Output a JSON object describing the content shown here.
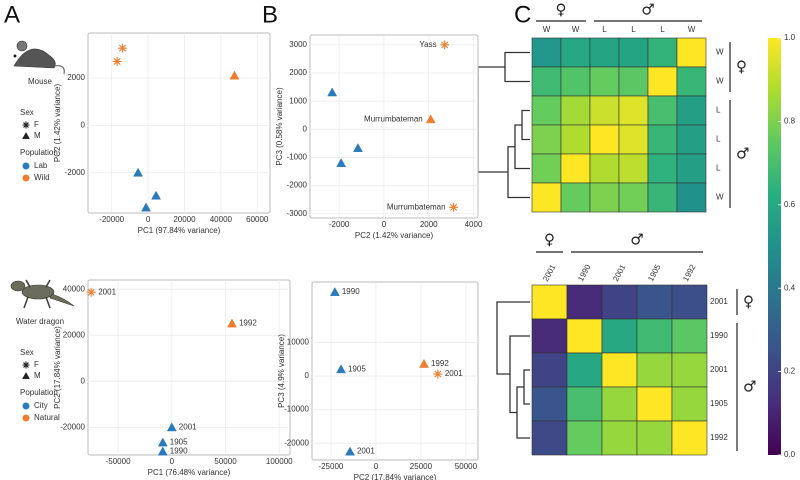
{
  "panels": [
    "A",
    "B",
    "C"
  ],
  "legends": [
    {
      "species": "Mouse",
      "sex_title": "Sex",
      "sex": [
        {
          "label": "F",
          "marker": "asterisk"
        },
        {
          "label": "M",
          "marker": "triangle"
        }
      ],
      "population_title": "Population"
    },
    {
      "species": "Water dragon",
      "sex_title": "Sex",
      "sex": [
        {
          "label": "F",
          "marker": "asterisk"
        },
        {
          "label": "M",
          "marker": "triangle"
        }
      ],
      "population_title": "Population"
    }
  ],
  "colorbar": {
    "lim": [
      0,
      1
    ],
    "ticks": [
      {
        "value": 0,
        "label": "0.0"
      },
      {
        "value": 0.2,
        "label": "0.2"
      },
      {
        "value": 0.4,
        "label": "0.4"
      },
      {
        "value": 0.6,
        "label": "0.6"
      },
      {
        "value": 0.8,
        "label": "0.8"
      },
      {
        "value": 1,
        "label": "1.0"
      }
    ]
  },
  "chart_data": [
    {
      "type": "scatter",
      "x_label": "PC1 (97.84% variance)",
      "y_label": "PC2 (1.42% variance)",
      "xlim": [
        -33000,
        67000
      ],
      "xticks": [
        -20000,
        0,
        20000,
        40000,
        60000
      ],
      "ylim": [
        -3700,
        3900
      ],
      "yticks": [
        -2000,
        0,
        2000
      ],
      "grid": true,
      "label_position": "right",
      "series": [
        {
          "name": "Lab",
          "color": "#2b7bba",
          "x": [
            -5500,
            4400,
            -1100
          ],
          "y": [
            -2000,
            -2970,
            -3470
          ],
          "markers": [
            "triangle",
            "triangle",
            "triangle"
          ]
        },
        {
          "name": "Wild",
          "color": "#ee7d2f",
          "x": [
            -17000,
            -14000,
            47500
          ],
          "y": [
            2700,
            3260,
            2100
          ],
          "markers": [
            "asterisk",
            "asterisk",
            "triangle"
          ]
        }
      ]
    },
    {
      "type": "scatter",
      "x_label": "PC2 (1.42% variance)",
      "y_label": "PC3 (0.58% variance)",
      "xlim": [
        -3300,
        4200
      ],
      "xticks": [
        -2000,
        0,
        2000,
        4000
      ],
      "ylim": [
        -3150,
        3350
      ],
      "yticks": [
        -3000,
        -2000,
        -1000,
        0,
        1000,
        2000,
        3000
      ],
      "grid": true,
      "label_position": "left",
      "series": [
        {
          "name": "Lab",
          "color": "#2b7bba",
          "x": [
            -2310,
            -1160,
            -1910
          ],
          "y": [
            1310,
            -670,
            -1200
          ],
          "markers": [
            "triangle",
            "triangle",
            "triangle"
          ]
        },
        {
          "name": "Wild",
          "color": "#ee7d2f",
          "x": [
            2710,
            2090,
            3110
          ],
          "y": [
            3000,
            355,
            -2770
          ],
          "markers": [
            "asterisk",
            "triangle",
            "asterisk"
          ],
          "labels": [
            "Yass",
            "Murrumbateman",
            "Murrumbateman"
          ]
        }
      ]
    },
    {
      "type": "scatter",
      "x_label": "PC1 (76.48% variance)",
      "y_label": "PC2 (17.84% variance)",
      "xlim": [
        -78000,
        110000
      ],
      "xticks": [
        -50000,
        0,
        50000,
        100000
      ],
      "ylim": [
        -32000,
        44000
      ],
      "yticks": [
        -20000,
        0,
        20000,
        40000
      ],
      "grid": true,
      "label_position": "right",
      "series": [
        {
          "name": "City",
          "color": "#2b7bba",
          "x": [
            0,
            -8400,
            -8400
          ],
          "y": [
            -20000,
            -26600,
            -30500
          ],
          "markers": [
            "triangle",
            "triangle",
            "triangle"
          ],
          "labels": [
            "2001",
            "1905",
            "1990"
          ]
        },
        {
          "name": "Natural",
          "color": "#ee7d2f",
          "x": [
            -75000,
            56000
          ],
          "y": [
            38700,
            25100
          ],
          "markers": [
            "asterisk",
            "triangle"
          ],
          "labels": [
            "2001",
            "1992"
          ]
        }
      ]
    },
    {
      "type": "scatter",
      "x_label": "PC2 (17.84% variance)",
      "y_label": "PC3 (4.9% variance)",
      "xlim": [
        -35500,
        56700
      ],
      "xticks": [
        -25000,
        0,
        25000,
        50000
      ],
      "ylim": [
        -25000,
        28000
      ],
      "yticks": [
        -20000,
        -10000,
        0,
        10000
      ],
      "grid": true,
      "label_position": "right",
      "series": [
        {
          "name": "City",
          "color": "#2b7bba",
          "x": [
            -22800,
            -19400,
            -14400
          ],
          "y": [
            25000,
            2000,
            -22500
          ],
          "markers": [
            "triangle",
            "triangle",
            "triangle"
          ],
          "labels": [
            "1990",
            "1905",
            "2001"
          ]
        },
        {
          "name": "Natural",
          "color": "#ee7d2f",
          "x": [
            26700,
            34400
          ],
          "y": [
            3600,
            600
          ],
          "markers": [
            "triangle",
            "asterisk"
          ],
          "labels": [
            "1992",
            "2001"
          ]
        }
      ]
    },
    {
      "type": "heatmap",
      "colormap": "viridis",
      "clim": [
        0,
        1
      ],
      "x_groups": [
        {
          "label": "♀",
          "count": 2
        },
        {
          "label": "♂",
          "count": 4
        }
      ],
      "y_groups": [
        {
          "label": "♀",
          "count": 2
        },
        {
          "label": "♂",
          "count": 4
        }
      ],
      "x_labels": [
        "W",
        "W",
        "L",
        "L",
        "L",
        "W"
      ],
      "y_labels": [
        "W",
        "W",
        "L",
        "L",
        "L",
        "W"
      ],
      "values": [
        [
          0.52,
          0.6,
          0.58,
          0.58,
          0.65,
          1.0
        ],
        [
          0.68,
          0.72,
          0.76,
          0.74,
          1.0,
          0.66
        ],
        [
          0.76,
          0.86,
          0.92,
          0.95,
          0.7,
          0.56
        ],
        [
          0.8,
          0.88,
          1.0,
          0.95,
          0.66,
          0.56
        ],
        [
          0.78,
          1.0,
          0.88,
          0.9,
          0.64,
          0.56
        ],
        [
          1.0,
          0.76,
          0.8,
          0.78,
          0.66,
          0.5
        ]
      ]
    },
    {
      "type": "heatmap",
      "colormap": "viridis",
      "clim": [
        0,
        1
      ],
      "x_groups": [
        {
          "label": "♀",
          "count": 1
        },
        {
          "label": "♂",
          "count": 4
        }
      ],
      "y_groups": [
        {
          "label": "♀",
          "count": 1
        },
        {
          "label": "♂",
          "count": 4
        }
      ],
      "x_labels": [
        "2001",
        "1990",
        "2001",
        "1905",
        "1992"
      ],
      "y_labels": [
        "2001",
        "1990",
        "2001",
        "1905",
        "1992"
      ],
      "values": [
        [
          1.0,
          0.12,
          0.2,
          0.26,
          0.24
        ],
        [
          0.12,
          1.0,
          0.6,
          0.68,
          0.74
        ],
        [
          0.2,
          0.6,
          1.0,
          0.84,
          0.84
        ],
        [
          0.26,
          0.7,
          0.84,
          1.0,
          0.84
        ],
        [
          0.22,
          0.76,
          0.84,
          0.84,
          1.0
        ]
      ]
    }
  ]
}
